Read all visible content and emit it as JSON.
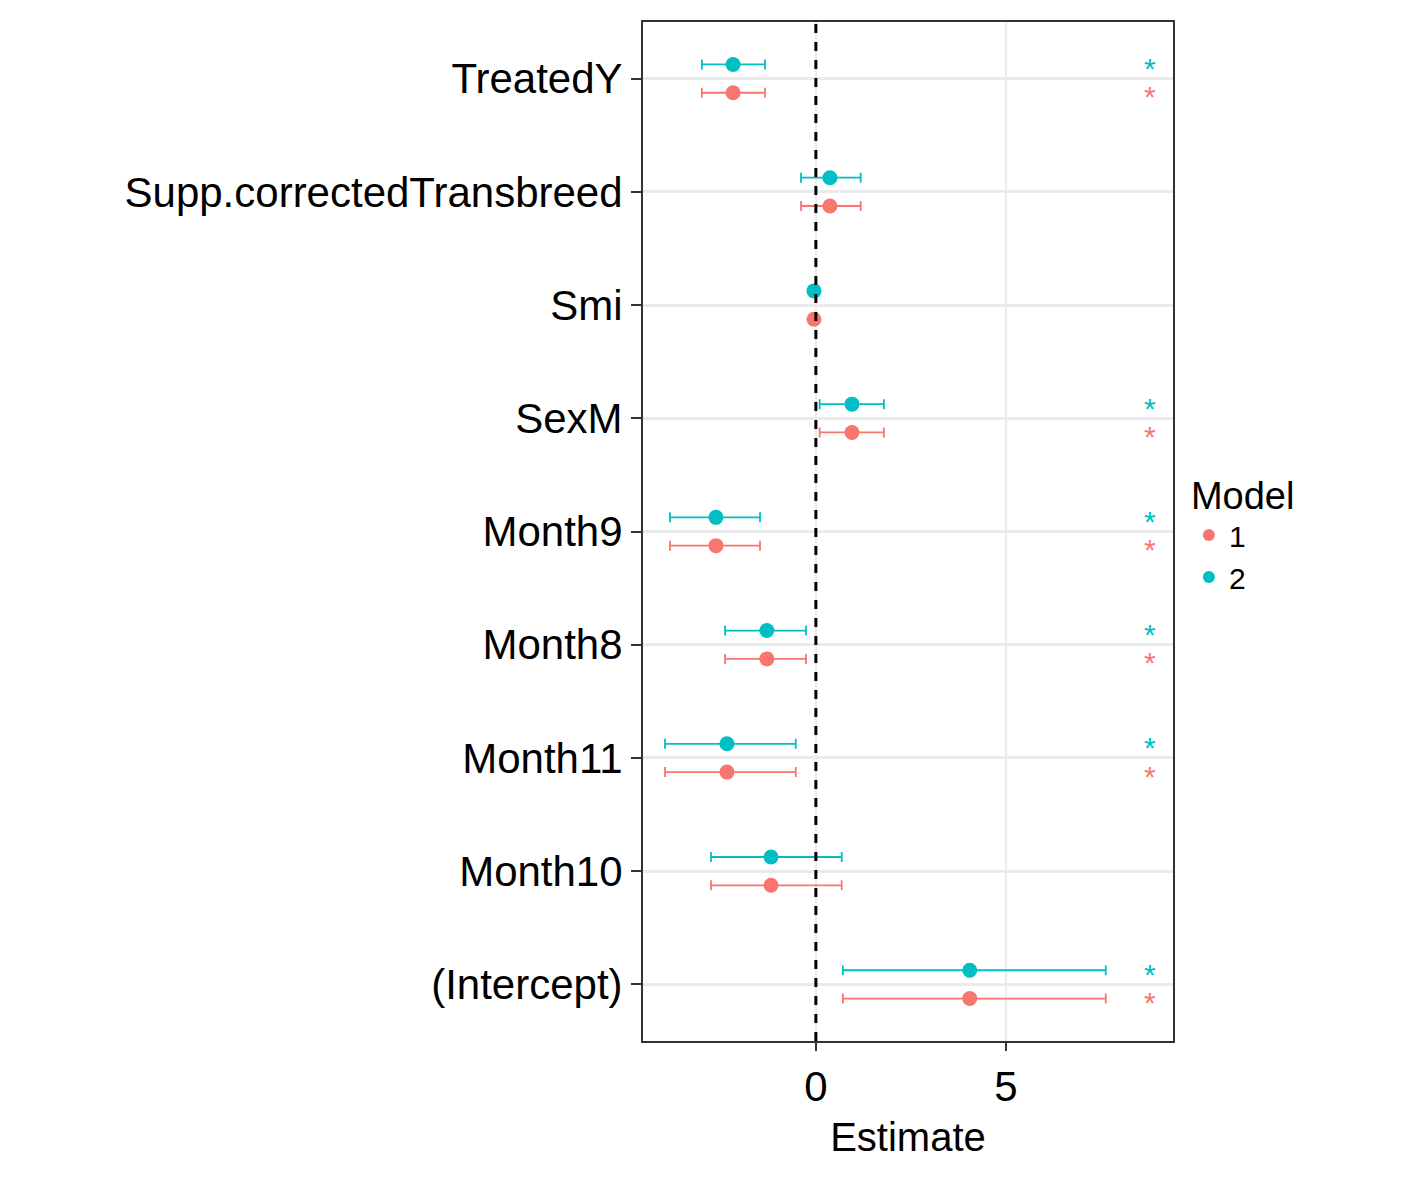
{
  "chart_data": {
    "type": "scatter",
    "orientation": "horizontal",
    "x_label": "Estimate",
    "legend_title": "Model",
    "legend": "right",
    "grid": true,
    "xlim": [
      -4.55,
      9.4
    ],
    "xticks": [
      0,
      5
    ],
    "ref_line": 0,
    "categories": [
      "TreatedY",
      "Supp.correctedTransbreed",
      "Smi",
      "SexM",
      "Month9",
      "Month8",
      "Month11",
      "Month10",
      "(Intercept)"
    ],
    "series": [
      {
        "name": "1",
        "color": "#F8766D",
        "marker": "circle",
        "values": [
          -2.18,
          0.37,
          -0.05,
          0.95,
          -2.63,
          -1.29,
          -2.34,
          -1.18,
          4.05
        ],
        "lower": [
          -3.0,
          -0.39,
          -0.1,
          0.1,
          -3.84,
          -2.39,
          -3.97,
          -2.76,
          0.71
        ],
        "upper": [
          -1.34,
          1.18,
          0.0,
          1.79,
          -1.47,
          -0.26,
          -0.53,
          0.68,
          7.63
        ],
        "significance": [
          "*",
          null,
          null,
          "*",
          "*",
          "*",
          "*",
          null,
          "*"
        ]
      },
      {
        "name": "2",
        "color": "#00BFC4",
        "marker": "circle",
        "values": [
          -2.18,
          0.37,
          -0.05,
          0.95,
          -2.63,
          -1.29,
          -2.34,
          -1.18,
          4.05
        ],
        "lower": [
          -3.0,
          -0.39,
          -0.1,
          0.1,
          -3.84,
          -2.39,
          -3.97,
          -2.76,
          0.71
        ],
        "upper": [
          -1.34,
          1.18,
          0.0,
          1.79,
          -1.47,
          -0.26,
          -0.53,
          0.68,
          7.63
        ],
        "significance": [
          "*",
          null,
          null,
          "*",
          "*",
          "*",
          "*",
          null,
          "*"
        ]
      }
    ]
  }
}
